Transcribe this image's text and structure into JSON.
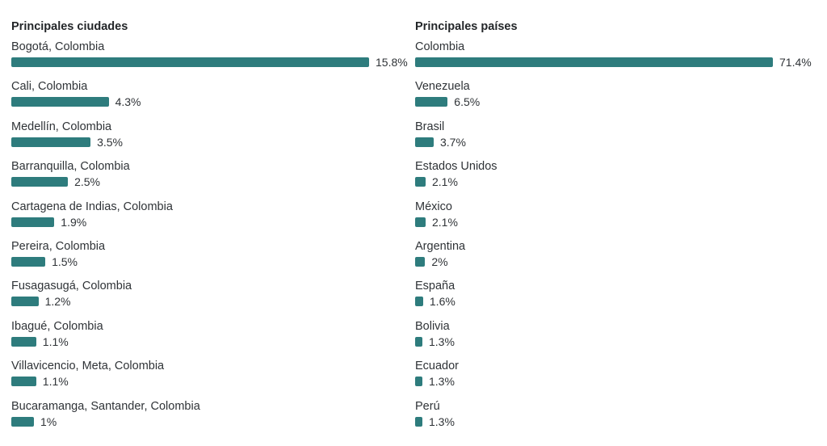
{
  "chart_data": [
    {
      "type": "bar",
      "orientation": "horizontal",
      "title": "Principales ciudades",
      "scale_max": 15.8,
      "categories": [
        "Bogotá, Colombia",
        "Cali, Colombia",
        "Medellín, Colombia",
        "Barranquilla, Colombia",
        "Cartagena de Indias, Colombia",
        "Pereira, Colombia",
        "Fusagasugá, Colombia",
        "Ibagué, Colombia",
        "Villavicencio, Meta, Colombia",
        "Bucaramanga, Santander, Colombia"
      ],
      "values": [
        15.8,
        4.3,
        3.5,
        2.5,
        1.9,
        1.5,
        1.2,
        1.1,
        1.1,
        1
      ],
      "value_labels": [
        "15.8%",
        "4.3%",
        "3.5%",
        "2.5%",
        "1.9%",
        "1.5%",
        "1.2%",
        "1.1%",
        "1.1%",
        "1%"
      ],
      "bar_color": "#2e7c7d"
    },
    {
      "type": "bar",
      "orientation": "horizontal",
      "title": "Principales países",
      "scale_max": 71.4,
      "categories": [
        "Colombia",
        "Venezuela",
        "Brasil",
        "Estados Unidos",
        "México",
        "Argentina",
        "España",
        "Bolivia",
        "Ecuador",
        "Perú"
      ],
      "values": [
        71.4,
        6.5,
        3.7,
        2.1,
        2.1,
        2,
        1.6,
        1.3,
        1.3,
        1.3
      ],
      "value_labels": [
        "71.4%",
        "6.5%",
        "3.7%",
        "2.1%",
        "2.1%",
        "2%",
        "1.6%",
        "1.3%",
        "1.3%",
        "1.3%"
      ],
      "bar_color": "#2e7c7d"
    }
  ]
}
